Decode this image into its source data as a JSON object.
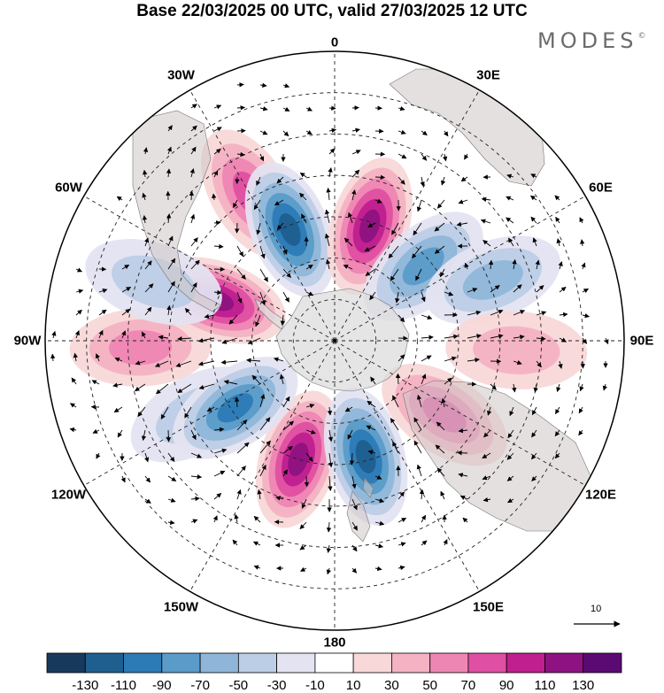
{
  "title": "Base 22/03/2025 00 UTC, valid 27/03/2025 12 UTC",
  "logo": "MODES",
  "logo_mark": "©",
  "longitudes": [
    {
      "label": "0",
      "deg": 0
    },
    {
      "label": "30E",
      "deg": 30
    },
    {
      "label": "60E",
      "deg": 60
    },
    {
      "label": "90E",
      "deg": 90
    },
    {
      "label": "120E",
      "deg": 120
    },
    {
      "label": "150E",
      "deg": 150
    },
    {
      "label": "180",
      "deg": 180
    },
    {
      "label": "150W",
      "deg": -150
    },
    {
      "label": "120W",
      "deg": -120
    },
    {
      "label": "90W",
      "deg": -90
    },
    {
      "label": "60W",
      "deg": -60
    },
    {
      "label": "30W",
      "deg": -30
    }
  ],
  "reference_vector_label": "10",
  "colorbar": {
    "tick_labels": [
      "-130",
      "-110",
      "-90",
      "-70",
      "-50",
      "-30",
      "-10",
      "10",
      "30",
      "50",
      "70",
      "90",
      "110",
      "130"
    ],
    "colors": [
      "#173a5c",
      "#1e5f8f",
      "#2c7bb6",
      "#5a9bc9",
      "#8fb6d9",
      "#bccde6",
      "#e4e3f1",
      "#ffffff",
      "#f8d8d8",
      "#f4b2c3",
      "#ee86b3",
      "#df4fa2",
      "#bf1f8f",
      "#8e1281",
      "#5b0a73"
    ]
  },
  "anomaly_cells": [
    {
      "lat": -60,
      "lon": -163,
      "value": 110
    },
    {
      "lat": -61,
      "lon": 165,
      "value": -110
    },
    {
      "lat": -52,
      "lon": -118,
      "value": -40
    },
    {
      "lat": -61,
      "lon": -124,
      "value": -100
    },
    {
      "lat": -43,
      "lon": -92,
      "value": 60
    },
    {
      "lat": -60,
      "lon": -71,
      "value": 120
    },
    {
      "lat": -44,
      "lon": -72,
      "value": -40
    },
    {
      "lat": -49,
      "lon": -30,
      "value": 80
    },
    {
      "lat": -61,
      "lon": -22,
      "value": -110
    },
    {
      "lat": -61,
      "lon": 17,
      "value": 120
    },
    {
      "lat": -62,
      "lon": 50,
      "value": -80
    },
    {
      "lat": -49,
      "lon": 69,
      "value": -50
    },
    {
      "lat": -46,
      "lon": 93,
      "value": 40
    },
    {
      "lat": -58,
      "lon": 124,
      "value": 80
    }
  ]
}
